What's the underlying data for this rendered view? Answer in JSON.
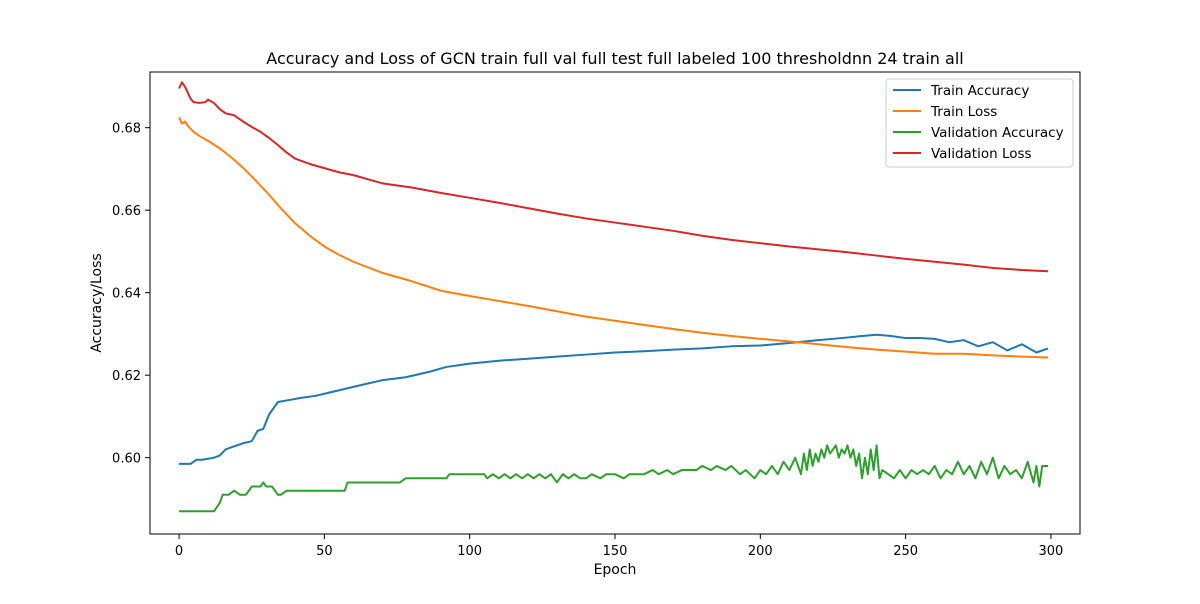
{
  "chart_data": {
    "type": "line",
    "title": "Accuracy and Loss of GCN train full val full test full labeled 100 thresholdnn 24 train all",
    "xlabel": "Epoch",
    "ylabel": "Accuracy/Loss",
    "xlim": [
      -10,
      310
    ],
    "ylim": [
      0.5815,
      0.6935
    ],
    "xticks": [
      0,
      50,
      100,
      150,
      200,
      250,
      300
    ],
    "yticks": [
      0.6,
      0.62,
      0.64,
      0.66,
      0.68
    ],
    "grid": false,
    "legend_position": "top-right",
    "series": [
      {
        "name": "Train Accuracy",
        "color": "#1f77b4",
        "x": [
          0,
          4,
          6,
          8,
          12,
          14,
          16,
          18,
          20,
          22,
          25,
          27,
          29,
          31,
          34,
          38,
          42,
          47,
          50,
          56,
          62,
          70,
          78,
          86,
          92,
          100,
          110,
          120,
          130,
          140,
          150,
          160,
          170,
          180,
          190,
          200,
          210,
          220,
          228,
          235,
          240,
          245,
          250,
          255,
          260,
          265,
          270,
          275,
          280,
          285,
          290,
          295,
          299
        ],
        "y": [
          0.5985,
          0.5985,
          0.5995,
          0.5995,
          0.6,
          0.6005,
          0.602,
          0.6025,
          0.603,
          0.6035,
          0.604,
          0.6065,
          0.607,
          0.6105,
          0.6135,
          0.614,
          0.6145,
          0.615,
          0.6155,
          0.6165,
          0.6175,
          0.6188,
          0.6195,
          0.6208,
          0.622,
          0.6228,
          0.6235,
          0.624,
          0.6245,
          0.625,
          0.6255,
          0.6258,
          0.6262,
          0.6265,
          0.627,
          0.6272,
          0.6278,
          0.6285,
          0.629,
          0.6295,
          0.6298,
          0.6295,
          0.629,
          0.629,
          0.6288,
          0.628,
          0.6285,
          0.627,
          0.628,
          0.626,
          0.6275,
          0.6255,
          0.6265
        ]
      },
      {
        "name": "Train Loss",
        "color": "#ff7f0e",
        "x": [
          0,
          1,
          2,
          3,
          5,
          7,
          10,
          14,
          18,
          22,
          26,
          30,
          35,
          40,
          45,
          50,
          55,
          60,
          70,
          80,
          90,
          100,
          110,
          120,
          130,
          140,
          150,
          160,
          170,
          180,
          190,
          200,
          210,
          220,
          230,
          240,
          250,
          260,
          270,
          280,
          290,
          299
        ],
        "y": [
          0.6825,
          0.681,
          0.6815,
          0.6805,
          0.679,
          0.678,
          0.6768,
          0.675,
          0.6728,
          0.6703,
          0.6675,
          0.6645,
          0.6605,
          0.6568,
          0.6538,
          0.6512,
          0.6492,
          0.6475,
          0.6448,
          0.6428,
          0.6405,
          0.6392,
          0.638,
          0.6368,
          0.6355,
          0.6342,
          0.6332,
          0.6322,
          0.6312,
          0.6303,
          0.6295,
          0.6288,
          0.6282,
          0.6275,
          0.6268,
          0.6262,
          0.6257,
          0.6252,
          0.6252,
          0.6248,
          0.6245,
          0.6243
        ]
      },
      {
        "name": "Validation Accuracy",
        "color": "#2ca02c",
        "x": [
          0,
          12,
          14,
          15,
          17,
          19,
          21,
          23,
          25,
          26,
          28,
          29,
          30,
          32,
          34,
          35,
          37,
          57,
          58,
          76,
          78,
          92,
          93,
          100,
          105,
          106,
          108,
          110,
          112,
          114,
          116,
          118,
          120,
          122,
          124,
          126,
          128,
          130,
          132,
          134,
          136,
          138,
          140,
          142,
          145,
          147,
          150,
          153,
          155,
          158,
          160,
          163,
          165,
          168,
          170,
          173,
          175,
          178,
          180,
          183,
          185,
          188,
          190,
          193,
          195,
          198,
          200,
          202,
          204,
          206,
          208,
          210,
          212,
          214,
          215,
          216,
          217,
          218,
          219,
          220,
          221,
          222,
          223,
          224,
          225,
          226,
          227,
          228,
          229,
          230,
          231,
          232,
          233,
          234,
          235,
          236,
          237,
          238,
          239,
          240,
          241,
          242,
          244,
          246,
          248,
          250,
          252,
          254,
          256,
          258,
          260,
          262,
          264,
          266,
          268,
          270,
          272,
          274,
          276,
          278,
          280,
          282,
          284,
          286,
          288,
          290,
          292,
          294,
          295,
          296,
          297,
          299
        ],
        "y": [
          0.587,
          0.587,
          0.589,
          0.591,
          0.591,
          0.592,
          0.591,
          0.591,
          0.593,
          0.593,
          0.593,
          0.594,
          0.593,
          0.593,
          0.591,
          0.591,
          0.592,
          0.592,
          0.594,
          0.594,
          0.595,
          0.595,
          0.596,
          0.596,
          0.596,
          0.595,
          0.596,
          0.595,
          0.596,
          0.595,
          0.596,
          0.595,
          0.596,
          0.595,
          0.596,
          0.595,
          0.596,
          0.594,
          0.596,
          0.595,
          0.596,
          0.595,
          0.595,
          0.596,
          0.595,
          0.596,
          0.596,
          0.595,
          0.596,
          0.596,
          0.596,
          0.597,
          0.596,
          0.597,
          0.596,
          0.597,
          0.597,
          0.597,
          0.598,
          0.597,
          0.598,
          0.597,
          0.598,
          0.596,
          0.597,
          0.595,
          0.597,
          0.596,
          0.598,
          0.596,
          0.599,
          0.597,
          0.6,
          0.596,
          0.601,
          0.597,
          0.602,
          0.598,
          0.601,
          0.599,
          0.602,
          0.6,
          0.603,
          0.601,
          0.602,
          0.603,
          0.6,
          0.602,
          0.601,
          0.603,
          0.6,
          0.602,
          0.598,
          0.601,
          0.595,
          0.6,
          0.596,
          0.602,
          0.597,
          0.603,
          0.595,
          0.597,
          0.596,
          0.595,
          0.597,
          0.595,
          0.597,
          0.596,
          0.597,
          0.596,
          0.598,
          0.595,
          0.597,
          0.596,
          0.599,
          0.596,
          0.598,
          0.595,
          0.599,
          0.596,
          0.6,
          0.595,
          0.598,
          0.596,
          0.597,
          0.595,
          0.599,
          0.594,
          0.598,
          0.593,
          0.598,
          0.598
        ]
      },
      {
        "name": "Validation Loss",
        "color": "#d62728",
        "x": [
          0,
          1,
          2,
          3,
          4,
          5,
          7,
          9,
          10,
          12,
          14,
          16,
          19,
          22,
          25,
          28,
          31,
          34,
          37,
          40,
          45,
          50,
          55,
          60,
          70,
          80,
          90,
          100,
          110,
          120,
          130,
          140,
          150,
          160,
          170,
          180,
          190,
          200,
          210,
          220,
          230,
          240,
          250,
          260,
          270,
          280,
          290,
          299
        ],
        "y": [
          0.6895,
          0.691,
          0.69,
          0.6885,
          0.687,
          0.6862,
          0.686,
          0.6862,
          0.6868,
          0.686,
          0.6845,
          0.6835,
          0.683,
          0.6815,
          0.6802,
          0.679,
          0.6775,
          0.6758,
          0.674,
          0.6725,
          0.6712,
          0.6702,
          0.6692,
          0.6685,
          0.6665,
          0.6655,
          0.6642,
          0.663,
          0.6618,
          0.6605,
          0.6592,
          0.658,
          0.657,
          0.656,
          0.655,
          0.6538,
          0.6528,
          0.652,
          0.6512,
          0.6505,
          0.6498,
          0.649,
          0.6482,
          0.6475,
          0.6468,
          0.646,
          0.6455,
          0.6452
        ]
      }
    ]
  }
}
